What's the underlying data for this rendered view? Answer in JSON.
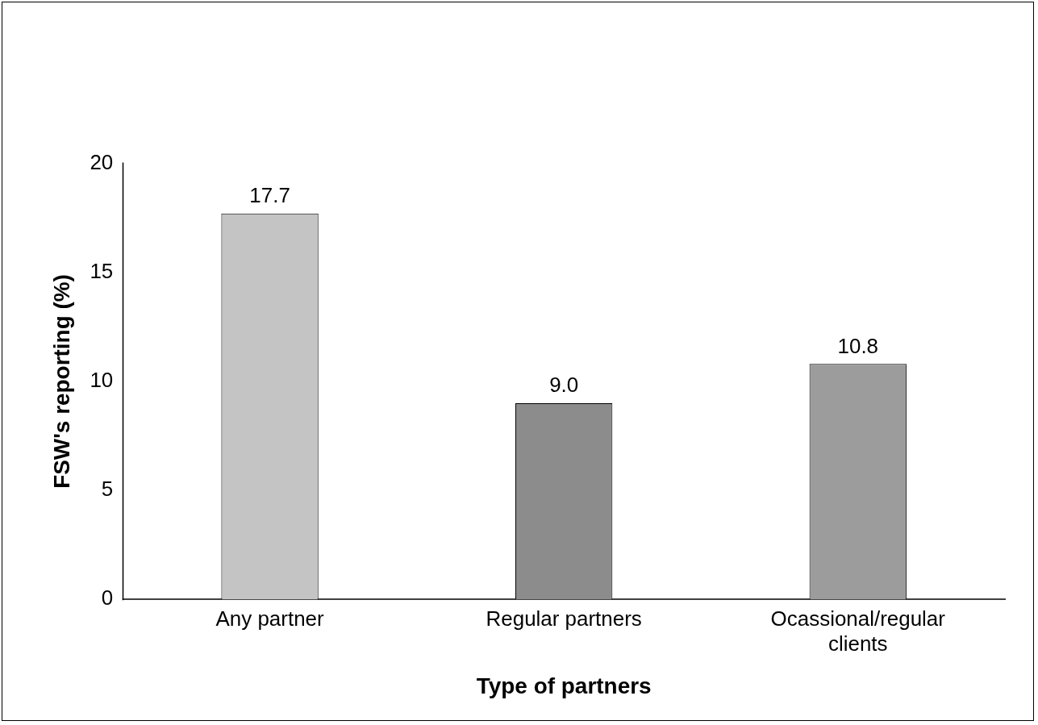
{
  "chart_data": {
    "type": "bar",
    "xlabel": "Type of partners",
    "ylabel": "FSW's reporting (%)",
    "categories": [
      "Any partner",
      "Regular partners",
      "Ocassional/regular clients"
    ],
    "values": [
      17.7,
      9.0,
      10.8
    ],
    "colors": [
      "#c4c4c4",
      "#8c8c8c",
      "#9c9c9c"
    ],
    "ylim": [
      0,
      20
    ],
    "yticks": [
      0,
      5,
      10,
      15,
      20
    ],
    "grid": false,
    "legend": false,
    "value_labels": [
      "17.7",
      "9.0",
      "10.8"
    ]
  }
}
